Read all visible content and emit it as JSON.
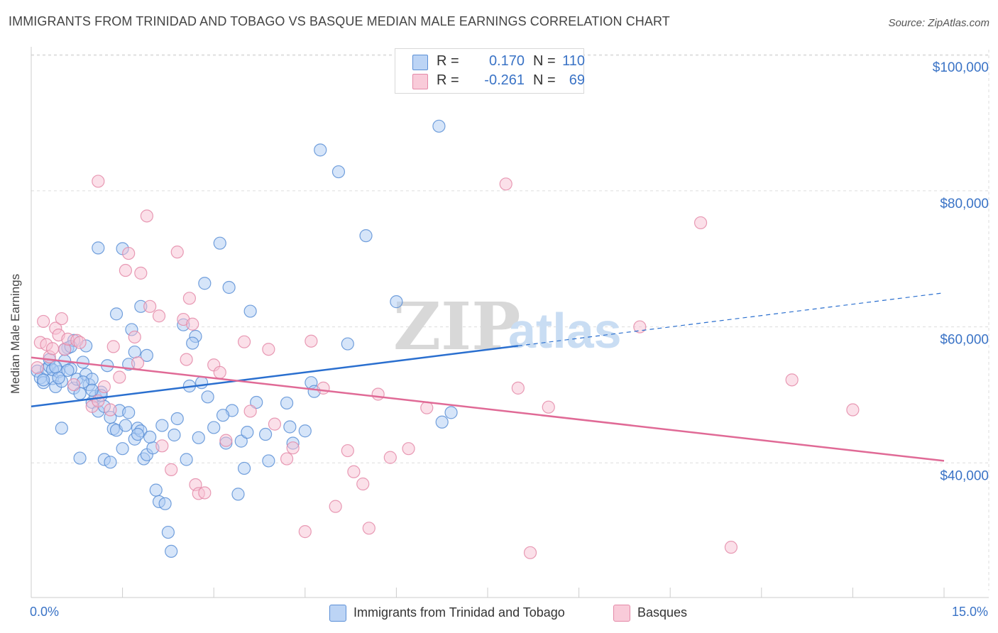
{
  "title": "IMMIGRANTS FROM TRINIDAD AND TOBAGO VS BASQUE MEDIAN MALE EARNINGS CORRELATION CHART",
  "source": "Source: ZipAtlas.com",
  "watermark": {
    "part1": "ZIP",
    "part2": "atlas"
  },
  "legend": {
    "rows": [
      {
        "r_label": "R =",
        "r_value": "0.170",
        "n_label": "N =",
        "n_value": "110"
      },
      {
        "r_label": "R =",
        "r_value": "-0.261",
        "n_label": "N =",
        "n_value": "69"
      }
    ]
  },
  "bottom_legend": [
    {
      "label": "Immigrants from Trinidad and Tobago"
    },
    {
      "label": "Basques"
    }
  ],
  "colors": {
    "blue_fill": "#aecbf3",
    "blue_stroke": "#5b8fd6",
    "blue_line": "#2a6fcf",
    "pink_fill": "#f7c2d3",
    "pink_stroke": "#e48aa8",
    "pink_line": "#e06a96",
    "tick_text": "#3a73c6",
    "grid": "#dddddd"
  },
  "chart_data": {
    "type": "scatter",
    "title": "IMMIGRANTS FROM TRINIDAD AND TOBAGO VS BASQUE MEDIAN MALE EARNINGS CORRELATION CHART",
    "xlabel": "",
    "ylabel": "Median Male Earnings",
    "xlim": [
      0,
      15
    ],
    "ylim": [
      20000,
      102000
    ],
    "x_tick_labels": [
      "0.0%",
      "15.0%"
    ],
    "y_ticks": [
      40000,
      60000,
      80000,
      100000
    ],
    "y_tick_labels": [
      "$40,000",
      "$60,000",
      "$80,000",
      "$100,000"
    ],
    "grid": true,
    "series": [
      {
        "name": "Immigrants from Trinidad and Tobago",
        "points": [
          [
            0.1,
            53500
          ],
          [
            0.15,
            52500
          ],
          [
            0.2,
            51800
          ],
          [
            0.25,
            53800
          ],
          [
            0.3,
            54200
          ],
          [
            0.35,
            52400
          ],
          [
            0.4,
            51200
          ],
          [
            0.45,
            53400
          ],
          [
            0.5,
            52000
          ],
          [
            0.55,
            55000
          ],
          [
            0.6,
            56900
          ],
          [
            0.65,
            53800
          ],
          [
            0.7,
            51000
          ],
          [
            0.75,
            52300
          ],
          [
            0.8,
            50200
          ],
          [
            0.85,
            54800
          ],
          [
            0.9,
            53000
          ],
          [
            0.95,
            51500
          ],
          [
            1.0,
            48900
          ],
          [
            1.05,
            49800
          ],
          [
            1.1,
            47600
          ],
          [
            1.15,
            50400
          ],
          [
            1.2,
            48300
          ],
          [
            1.3,
            46700
          ],
          [
            1.35,
            45000
          ],
          [
            1.4,
            44800
          ],
          [
            1.45,
            47700
          ],
          [
            1.5,
            42100
          ],
          [
            1.55,
            45500
          ],
          [
            1.6,
            47400
          ],
          [
            1.7,
            43500
          ],
          [
            1.75,
            45100
          ],
          [
            1.8,
            44700
          ],
          [
            1.85,
            40600
          ],
          [
            1.9,
            41200
          ],
          [
            2.0,
            42200
          ],
          [
            2.05,
            36000
          ],
          [
            2.1,
            34300
          ],
          [
            2.2,
            34000
          ],
          [
            2.25,
            29800
          ],
          [
            2.3,
            27000
          ],
          [
            0.5,
            45100
          ],
          [
            0.8,
            40700
          ],
          [
            1.2,
            40500
          ],
          [
            1.3,
            40100
          ],
          [
            1.1,
            71600
          ],
          [
            1.5,
            71500
          ],
          [
            1.4,
            61900
          ],
          [
            1.65,
            59600
          ],
          [
            1.7,
            56300
          ],
          [
            1.6,
            54500
          ],
          [
            1.8,
            63000
          ],
          [
            1.9,
            55800
          ],
          [
            2.5,
            60300
          ],
          [
            2.7,
            58600
          ],
          [
            2.85,
            66400
          ],
          [
            3.1,
            72300
          ],
          [
            3.25,
            65800
          ],
          [
            3.6,
            62300
          ],
          [
            2.65,
            57600
          ],
          [
            2.6,
            51300
          ],
          [
            2.8,
            51800
          ],
          [
            2.9,
            49700
          ],
          [
            3.0,
            45200
          ],
          [
            3.2,
            42900
          ],
          [
            3.3,
            47700
          ],
          [
            3.45,
            43200
          ],
          [
            3.55,
            44500
          ],
          [
            3.7,
            48900
          ],
          [
            3.5,
            39200
          ],
          [
            3.4,
            35400
          ],
          [
            3.85,
            44200
          ],
          [
            3.9,
            40300
          ],
          [
            4.2,
            48800
          ],
          [
            4.25,
            45300
          ],
          [
            4.3,
            42900
          ],
          [
            4.6,
            51800
          ],
          [
            4.65,
            50500
          ],
          [
            4.75,
            86000
          ],
          [
            5.05,
            82800
          ],
          [
            5.2,
            57500
          ],
          [
            5.5,
            73400
          ],
          [
            6.0,
            63700
          ],
          [
            6.7,
            89500
          ],
          [
            6.9,
            47400
          ],
          [
            6.75,
            46000
          ],
          [
            0.3,
            55200
          ],
          [
            0.6,
            53600
          ],
          [
            0.9,
            57200
          ],
          [
            1.0,
            52300
          ],
          [
            0.7,
            58000
          ],
          [
            2.4,
            46500
          ],
          [
            2.55,
            40500
          ],
          [
            2.15,
            45500
          ],
          [
            0.2,
            52200
          ],
          [
            0.35,
            53700
          ],
          [
            1.25,
            54300
          ],
          [
            0.45,
            52500
          ],
          [
            1.95,
            43800
          ],
          [
            0.55,
            56700
          ],
          [
            2.35,
            44100
          ],
          [
            2.75,
            43700
          ],
          [
            1.15,
            49900
          ],
          [
            0.65,
            57100
          ],
          [
            0.85,
            51900
          ],
          [
            3.15,
            47000
          ],
          [
            1.75,
            44200
          ],
          [
            4.5,
            44700
          ],
          [
            0.4,
            54100
          ],
          [
            1.0,
            50700
          ]
        ]
      },
      {
        "name": "Basques",
        "points": [
          [
            0.1,
            54000
          ],
          [
            0.15,
            57700
          ],
          [
            0.2,
            60800
          ],
          [
            0.25,
            57400
          ],
          [
            0.3,
            55600
          ],
          [
            0.35,
            56800
          ],
          [
            0.4,
            59800
          ],
          [
            0.45,
            58800
          ],
          [
            0.5,
            61200
          ],
          [
            0.55,
            56700
          ],
          [
            0.6,
            58200
          ],
          [
            0.7,
            51500
          ],
          [
            0.75,
            58000
          ],
          [
            0.8,
            57700
          ],
          [
            1.0,
            48300
          ],
          [
            1.1,
            49100
          ],
          [
            1.2,
            51200
          ],
          [
            1.3,
            47800
          ],
          [
            1.35,
            57100
          ],
          [
            1.45,
            52600
          ],
          [
            1.55,
            68300
          ],
          [
            1.6,
            70800
          ],
          [
            1.7,
            58500
          ],
          [
            1.75,
            54700
          ],
          [
            1.8,
            67900
          ],
          [
            1.9,
            76300
          ],
          [
            1.95,
            63000
          ],
          [
            2.1,
            61600
          ],
          [
            2.15,
            42500
          ],
          [
            2.3,
            39000
          ],
          [
            2.4,
            71000
          ],
          [
            2.5,
            61100
          ],
          [
            2.55,
            55200
          ],
          [
            2.6,
            64200
          ],
          [
            2.65,
            60400
          ],
          [
            2.7,
            36800
          ],
          [
            2.75,
            35500
          ],
          [
            2.85,
            35600
          ],
          [
            3.0,
            54400
          ],
          [
            3.1,
            53300
          ],
          [
            3.2,
            43300
          ],
          [
            3.5,
            57800
          ],
          [
            3.6,
            47600
          ],
          [
            3.9,
            56700
          ],
          [
            4.0,
            45700
          ],
          [
            4.2,
            40600
          ],
          [
            4.3,
            42200
          ],
          [
            4.5,
            29900
          ],
          [
            4.6,
            57900
          ],
          [
            4.8,
            51000
          ],
          [
            5.0,
            33600
          ],
          [
            5.2,
            41800
          ],
          [
            5.3,
            38700
          ],
          [
            5.45,
            36900
          ],
          [
            5.55,
            30400
          ],
          [
            5.7,
            50100
          ],
          [
            5.9,
            40800
          ],
          [
            6.2,
            42100
          ],
          [
            6.5,
            48100
          ],
          [
            7.8,
            81000
          ],
          [
            8.0,
            51000
          ],
          [
            8.2,
            26800
          ],
          [
            8.5,
            48200
          ],
          [
            10.0,
            60000
          ],
          [
            11.0,
            75300
          ],
          [
            11.5,
            27600
          ],
          [
            12.5,
            52200
          ],
          [
            13.5,
            47800
          ],
          [
            1.1,
            81400
          ]
        ]
      }
    ],
    "trend_lines": [
      {
        "series": "Immigrants from Trinidad and Tobago",
        "x": [
          0,
          15
        ],
        "y": [
          48300,
          65000
        ],
        "solid_until_x": 8.0
      },
      {
        "series": "Basques",
        "x": [
          0,
          15
        ],
        "y": [
          55500,
          40300
        ]
      }
    ]
  }
}
